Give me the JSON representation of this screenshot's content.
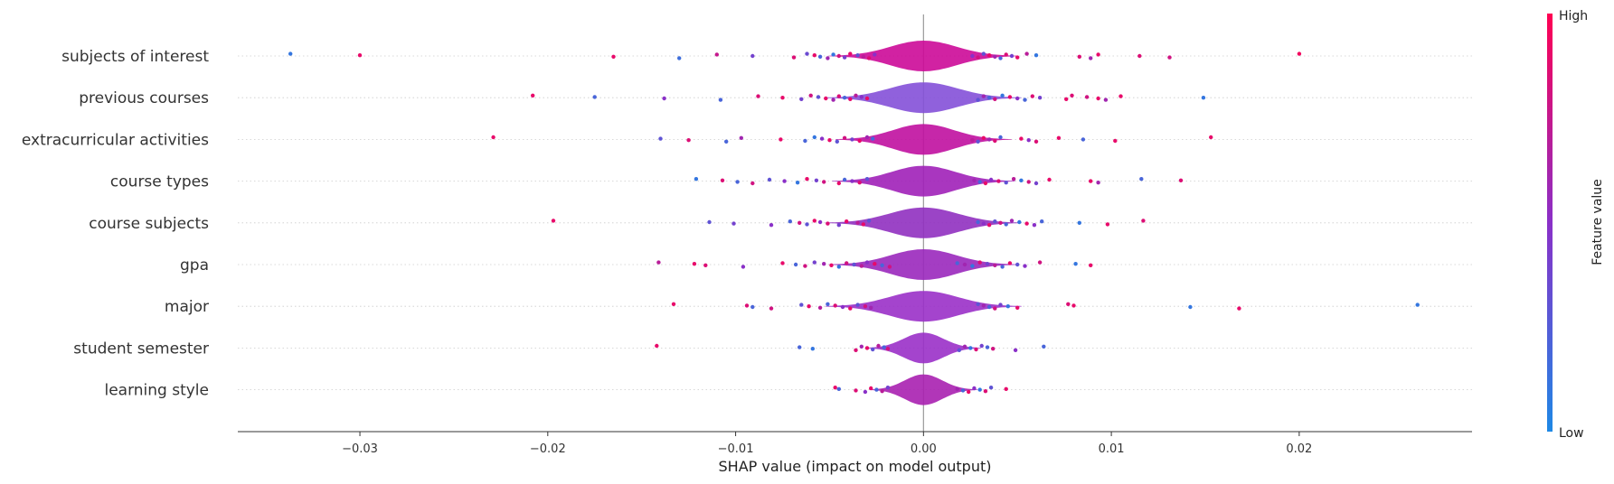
{
  "chart_data": {
    "type": "violin",
    "xlabel": "SHAP value (impact on model output)",
    "xlim": [
      -0.0365,
      0.0292
    ],
    "x_ticks": [
      -0.03,
      -0.02,
      -0.01,
      0.0,
      0.01,
      0.02
    ],
    "x_tick_labels": [
      "−0.03",
      "−0.02",
      "−0.01",
      "0.00",
      "0.01",
      "0.02"
    ],
    "colors": {
      "low": "#1e88e5",
      "high": "#ff0052",
      "zero_line": "#999999"
    },
    "colorbar": {
      "label": "Feature value",
      "high_label": "High",
      "low_label": "Low"
    },
    "features": [
      {
        "name": "subjects of interest",
        "spread": 0.0028,
        "violin_color": "#cc0a98",
        "points": [
          [
            -0.0337,
            0.1
          ],
          [
            -0.03,
            0.9
          ],
          [
            -0.0165,
            0.9
          ],
          [
            -0.013,
            0.15
          ],
          [
            -0.011,
            0.75
          ],
          [
            -0.0091,
            0.4
          ],
          [
            -0.0069,
            0.85
          ],
          [
            -0.0062,
            0.35
          ],
          [
            -0.0058,
            0.9
          ],
          [
            -0.0055,
            0.2
          ],
          [
            -0.0051,
            0.6
          ],
          [
            -0.0048,
            0.1
          ],
          [
            -0.0045,
            0.8
          ],
          [
            -0.0042,
            0.4
          ],
          [
            -0.0039,
            0.9
          ],
          [
            -0.0035,
            0.3
          ],
          [
            -0.0032,
            0.7
          ],
          [
            -0.0029,
            0.85
          ],
          [
            -0.0026,
            0.5
          ],
          [
            0.0026,
            0.5
          ],
          [
            0.0029,
            0.8
          ],
          [
            0.0032,
            0.3
          ],
          [
            0.0035,
            0.9
          ],
          [
            0.0038,
            0.6
          ],
          [
            0.0041,
            0.2
          ],
          [
            0.0044,
            0.85
          ],
          [
            0.0047,
            0.4
          ],
          [
            0.005,
            0.9
          ],
          [
            0.0055,
            0.7
          ],
          [
            0.006,
            0.1
          ],
          [
            0.0083,
            0.85
          ],
          [
            0.0089,
            0.6
          ],
          [
            0.0093,
            0.9
          ],
          [
            0.0115,
            0.85
          ],
          [
            0.0131,
            0.8
          ],
          [
            0.02,
            0.95
          ]
        ]
      },
      {
        "name": "previous courses",
        "spread": 0.0029,
        "violin_color": "#8450d8",
        "points": [
          [
            -0.0208,
            0.9
          ],
          [
            -0.0175,
            0.2
          ],
          [
            -0.0138,
            0.5
          ],
          [
            -0.0108,
            0.2
          ],
          [
            -0.0088,
            0.85
          ],
          [
            -0.0075,
            0.9
          ],
          [
            -0.0065,
            0.4
          ],
          [
            -0.006,
            0.8
          ],
          [
            -0.0056,
            0.3
          ],
          [
            -0.0052,
            0.9
          ],
          [
            -0.0048,
            0.6
          ],
          [
            -0.0045,
            0.85
          ],
          [
            -0.0042,
            0.2
          ],
          [
            -0.0039,
            0.9
          ],
          [
            -0.0036,
            0.7
          ],
          [
            -0.0033,
            0.5
          ],
          [
            -0.003,
            0.9
          ],
          [
            0.0029,
            0.3
          ],
          [
            0.0032,
            0.6
          ],
          [
            0.0035,
            0.2
          ],
          [
            0.0038,
            0.8
          ],
          [
            0.0042,
            0.1
          ],
          [
            0.0046,
            0.9
          ],
          [
            0.005,
            0.5
          ],
          [
            0.0054,
            0.2
          ],
          [
            0.0058,
            0.85
          ],
          [
            0.0062,
            0.4
          ],
          [
            0.0076,
            0.9
          ],
          [
            0.0079,
            0.85
          ],
          [
            0.0087,
            0.8
          ],
          [
            0.0093,
            0.9
          ],
          [
            0.0097,
            0.6
          ],
          [
            0.0105,
            0.9
          ],
          [
            0.0149,
            0.1
          ]
        ]
      },
      {
        "name": "extracurricular activities",
        "spread": 0.0026,
        "violin_color": "#c010a0",
        "points": [
          [
            -0.0229,
            0.9
          ],
          [
            -0.014,
            0.3
          ],
          [
            -0.0125,
            0.85
          ],
          [
            -0.0105,
            0.2
          ],
          [
            -0.0097,
            0.6
          ],
          [
            -0.0076,
            0.9
          ],
          [
            -0.0063,
            0.2
          ],
          [
            -0.0058,
            0.1
          ],
          [
            -0.0054,
            0.5
          ],
          [
            -0.005,
            0.9
          ],
          [
            -0.0046,
            0.3
          ],
          [
            -0.0042,
            0.8
          ],
          [
            -0.0038,
            0.4
          ],
          [
            -0.0034,
            0.9
          ],
          [
            -0.003,
            0.6
          ],
          [
            -0.0027,
            0.2
          ],
          [
            0.0026,
            0.7
          ],
          [
            0.0029,
            0.3
          ],
          [
            0.0032,
            0.9
          ],
          [
            0.0035,
            0.6
          ],
          [
            0.0038,
            0.85
          ],
          [
            0.0041,
            0.2
          ],
          [
            0.0052,
            0.9
          ],
          [
            0.0056,
            0.5
          ],
          [
            0.006,
            0.85
          ],
          [
            0.0072,
            0.9
          ],
          [
            0.0085,
            0.2
          ],
          [
            0.0102,
            0.9
          ],
          [
            0.0153,
            0.9
          ]
        ]
      },
      {
        "name": "course types",
        "spread": 0.0027,
        "violin_color": "#a020b8",
        "points": [
          [
            -0.0121,
            0.1
          ],
          [
            -0.0107,
            0.85
          ],
          [
            -0.0099,
            0.2
          ],
          [
            -0.0091,
            0.8
          ],
          [
            -0.0082,
            0.3
          ],
          [
            -0.0074,
            0.5
          ],
          [
            -0.0067,
            0.1
          ],
          [
            -0.0062,
            0.9
          ],
          [
            -0.0057,
            0.4
          ],
          [
            -0.0053,
            0.8
          ],
          [
            -0.0045,
            0.9
          ],
          [
            -0.0042,
            0.2
          ],
          [
            -0.0038,
            0.5
          ],
          [
            -0.0034,
            0.85
          ],
          [
            -0.003,
            0.3
          ],
          [
            0.0027,
            0.6
          ],
          [
            0.003,
            0.2
          ],
          [
            0.0033,
            0.9
          ],
          [
            0.0036,
            0.5
          ],
          [
            0.004,
            0.85
          ],
          [
            0.0044,
            0.3
          ],
          [
            0.0048,
            0.7
          ],
          [
            0.0052,
            0.1
          ],
          [
            0.0056,
            0.8
          ],
          [
            0.006,
            0.4
          ],
          [
            0.0067,
            0.9
          ],
          [
            0.0089,
            0.9
          ],
          [
            0.0093,
            0.6
          ],
          [
            0.0116,
            0.2
          ],
          [
            0.0137,
            0.85
          ]
        ]
      },
      {
        "name": "course subjects",
        "spread": 0.0029,
        "violin_color": "#9030c0",
        "points": [
          [
            -0.0197,
            0.9
          ],
          [
            -0.0114,
            0.3
          ],
          [
            -0.0101,
            0.4
          ],
          [
            -0.0081,
            0.5
          ],
          [
            -0.0071,
            0.2
          ],
          [
            -0.0066,
            0.8
          ],
          [
            -0.0062,
            0.3
          ],
          [
            -0.0058,
            0.9
          ],
          [
            -0.0055,
            0.5
          ],
          [
            -0.0051,
            0.85
          ],
          [
            -0.0045,
            0.4
          ],
          [
            -0.0041,
            0.9
          ],
          [
            -0.0035,
            0.7
          ],
          [
            -0.0032,
            0.9
          ],
          [
            -0.0029,
            0.3
          ],
          [
            0.0029,
            0.2
          ],
          [
            0.0032,
            0.5
          ],
          [
            0.0035,
            0.9
          ],
          [
            0.0038,
            0.3
          ],
          [
            0.0041,
            0.8
          ],
          [
            0.0044,
            0.2
          ],
          [
            0.0047,
            0.6
          ],
          [
            0.0051,
            0.1
          ],
          [
            0.0055,
            0.9
          ],
          [
            0.0059,
            0.5
          ],
          [
            0.0063,
            0.2
          ],
          [
            0.0083,
            0.1
          ],
          [
            0.0098,
            0.9
          ],
          [
            0.0117,
            0.85
          ]
        ]
      },
      {
        "name": "gpa",
        "spread": 0.0028,
        "violin_color": "#9a28bc",
        "points": [
          [
            -0.0141,
            0.7
          ],
          [
            -0.0122,
            0.9
          ],
          [
            -0.0116,
            0.85
          ],
          [
            -0.0096,
            0.5
          ],
          [
            -0.0075,
            0.9
          ],
          [
            -0.0068,
            0.2
          ],
          [
            -0.0063,
            0.8
          ],
          [
            -0.0058,
            0.4
          ],
          [
            -0.0053,
            0.6
          ],
          [
            -0.0049,
            0.9
          ],
          [
            -0.0045,
            0.1
          ],
          [
            -0.0041,
            0.8
          ],
          [
            -0.0037,
            0.3
          ],
          [
            -0.0033,
            0.7
          ],
          [
            -0.003,
            0.5
          ],
          [
            -0.0026,
            0.9
          ],
          [
            -0.0022,
            0.2
          ],
          [
            -0.0018,
            0.8
          ],
          [
            0.0018,
            0.2
          ],
          [
            0.0022,
            0.6
          ],
          [
            0.0026,
            0.1
          ],
          [
            0.003,
            0.85
          ],
          [
            0.0034,
            0.4
          ],
          [
            0.0038,
            0.7
          ],
          [
            0.0042,
            0.2
          ],
          [
            0.0046,
            0.9
          ],
          [
            0.005,
            0.3
          ],
          [
            0.0054,
            0.5
          ],
          [
            0.0062,
            0.8
          ],
          [
            0.0081,
            0.1
          ],
          [
            0.0089,
            0.9
          ]
        ]
      },
      {
        "name": "major",
        "spread": 0.0029,
        "violin_color": "#9a30c8",
        "points": [
          [
            -0.0133,
            0.9
          ],
          [
            -0.0094,
            0.85
          ],
          [
            -0.0091,
            0.2
          ],
          [
            -0.0081,
            0.8
          ],
          [
            -0.0065,
            0.3
          ],
          [
            -0.0061,
            0.9
          ],
          [
            -0.0055,
            0.7
          ],
          [
            -0.0051,
            0.2
          ],
          [
            -0.0047,
            0.85
          ],
          [
            -0.0043,
            0.5
          ],
          [
            -0.0039,
            0.9
          ],
          [
            -0.0035,
            0.3
          ],
          [
            -0.0031,
            0.8
          ],
          [
            -0.0028,
            0.6
          ],
          [
            0.0029,
            0.3
          ],
          [
            0.0032,
            0.6
          ],
          [
            0.0035,
            0.2
          ],
          [
            0.0038,
            0.8
          ],
          [
            0.0041,
            0.4
          ],
          [
            0.0045,
            0.1
          ],
          [
            0.005,
            0.9
          ],
          [
            0.0077,
            0.85
          ],
          [
            0.008,
            0.9
          ],
          [
            0.0142,
            0.1
          ],
          [
            0.0168,
            0.9
          ],
          [
            0.0263,
            0.1
          ]
        ]
      },
      {
        "name": "student semester",
        "spread": 0.0017,
        "violin_color": "#9a30c8",
        "points": [
          [
            -0.0142,
            0.9
          ],
          [
            -0.0066,
            0.2
          ],
          [
            -0.0059,
            0.1
          ],
          [
            -0.0036,
            0.85
          ],
          [
            -0.0033,
            0.6
          ],
          [
            -0.003,
            0.9
          ],
          [
            -0.0027,
            0.3
          ],
          [
            -0.0024,
            0.7
          ],
          [
            -0.0021,
            0.2
          ],
          [
            -0.0019,
            0.8
          ],
          [
            0.0019,
            0.3
          ],
          [
            0.0022,
            0.6
          ],
          [
            0.0025,
            0.1
          ],
          [
            0.0028,
            0.85
          ],
          [
            0.0031,
            0.4
          ],
          [
            0.0034,
            0.2
          ],
          [
            0.0037,
            0.8
          ],
          [
            0.0049,
            0.5
          ],
          [
            0.0064,
            0.2
          ]
        ]
      },
      {
        "name": "learning style",
        "spread": 0.0016,
        "violin_color": "#a820b0",
        "points": [
          [
            -0.0047,
            0.9
          ],
          [
            -0.0045,
            0.2
          ],
          [
            -0.0036,
            0.85
          ],
          [
            -0.0031,
            0.5
          ],
          [
            -0.0028,
            0.9
          ],
          [
            -0.0025,
            0.2
          ],
          [
            -0.0022,
            0.7
          ],
          [
            -0.0019,
            0.4
          ],
          [
            0.0018,
            0.6
          ],
          [
            0.0021,
            0.2
          ],
          [
            0.0024,
            0.9
          ],
          [
            0.0027,
            0.5
          ],
          [
            0.003,
            0.1
          ],
          [
            0.0033,
            0.85
          ],
          [
            0.0036,
            0.3
          ],
          [
            0.0044,
            0.9
          ]
        ]
      }
    ]
  }
}
